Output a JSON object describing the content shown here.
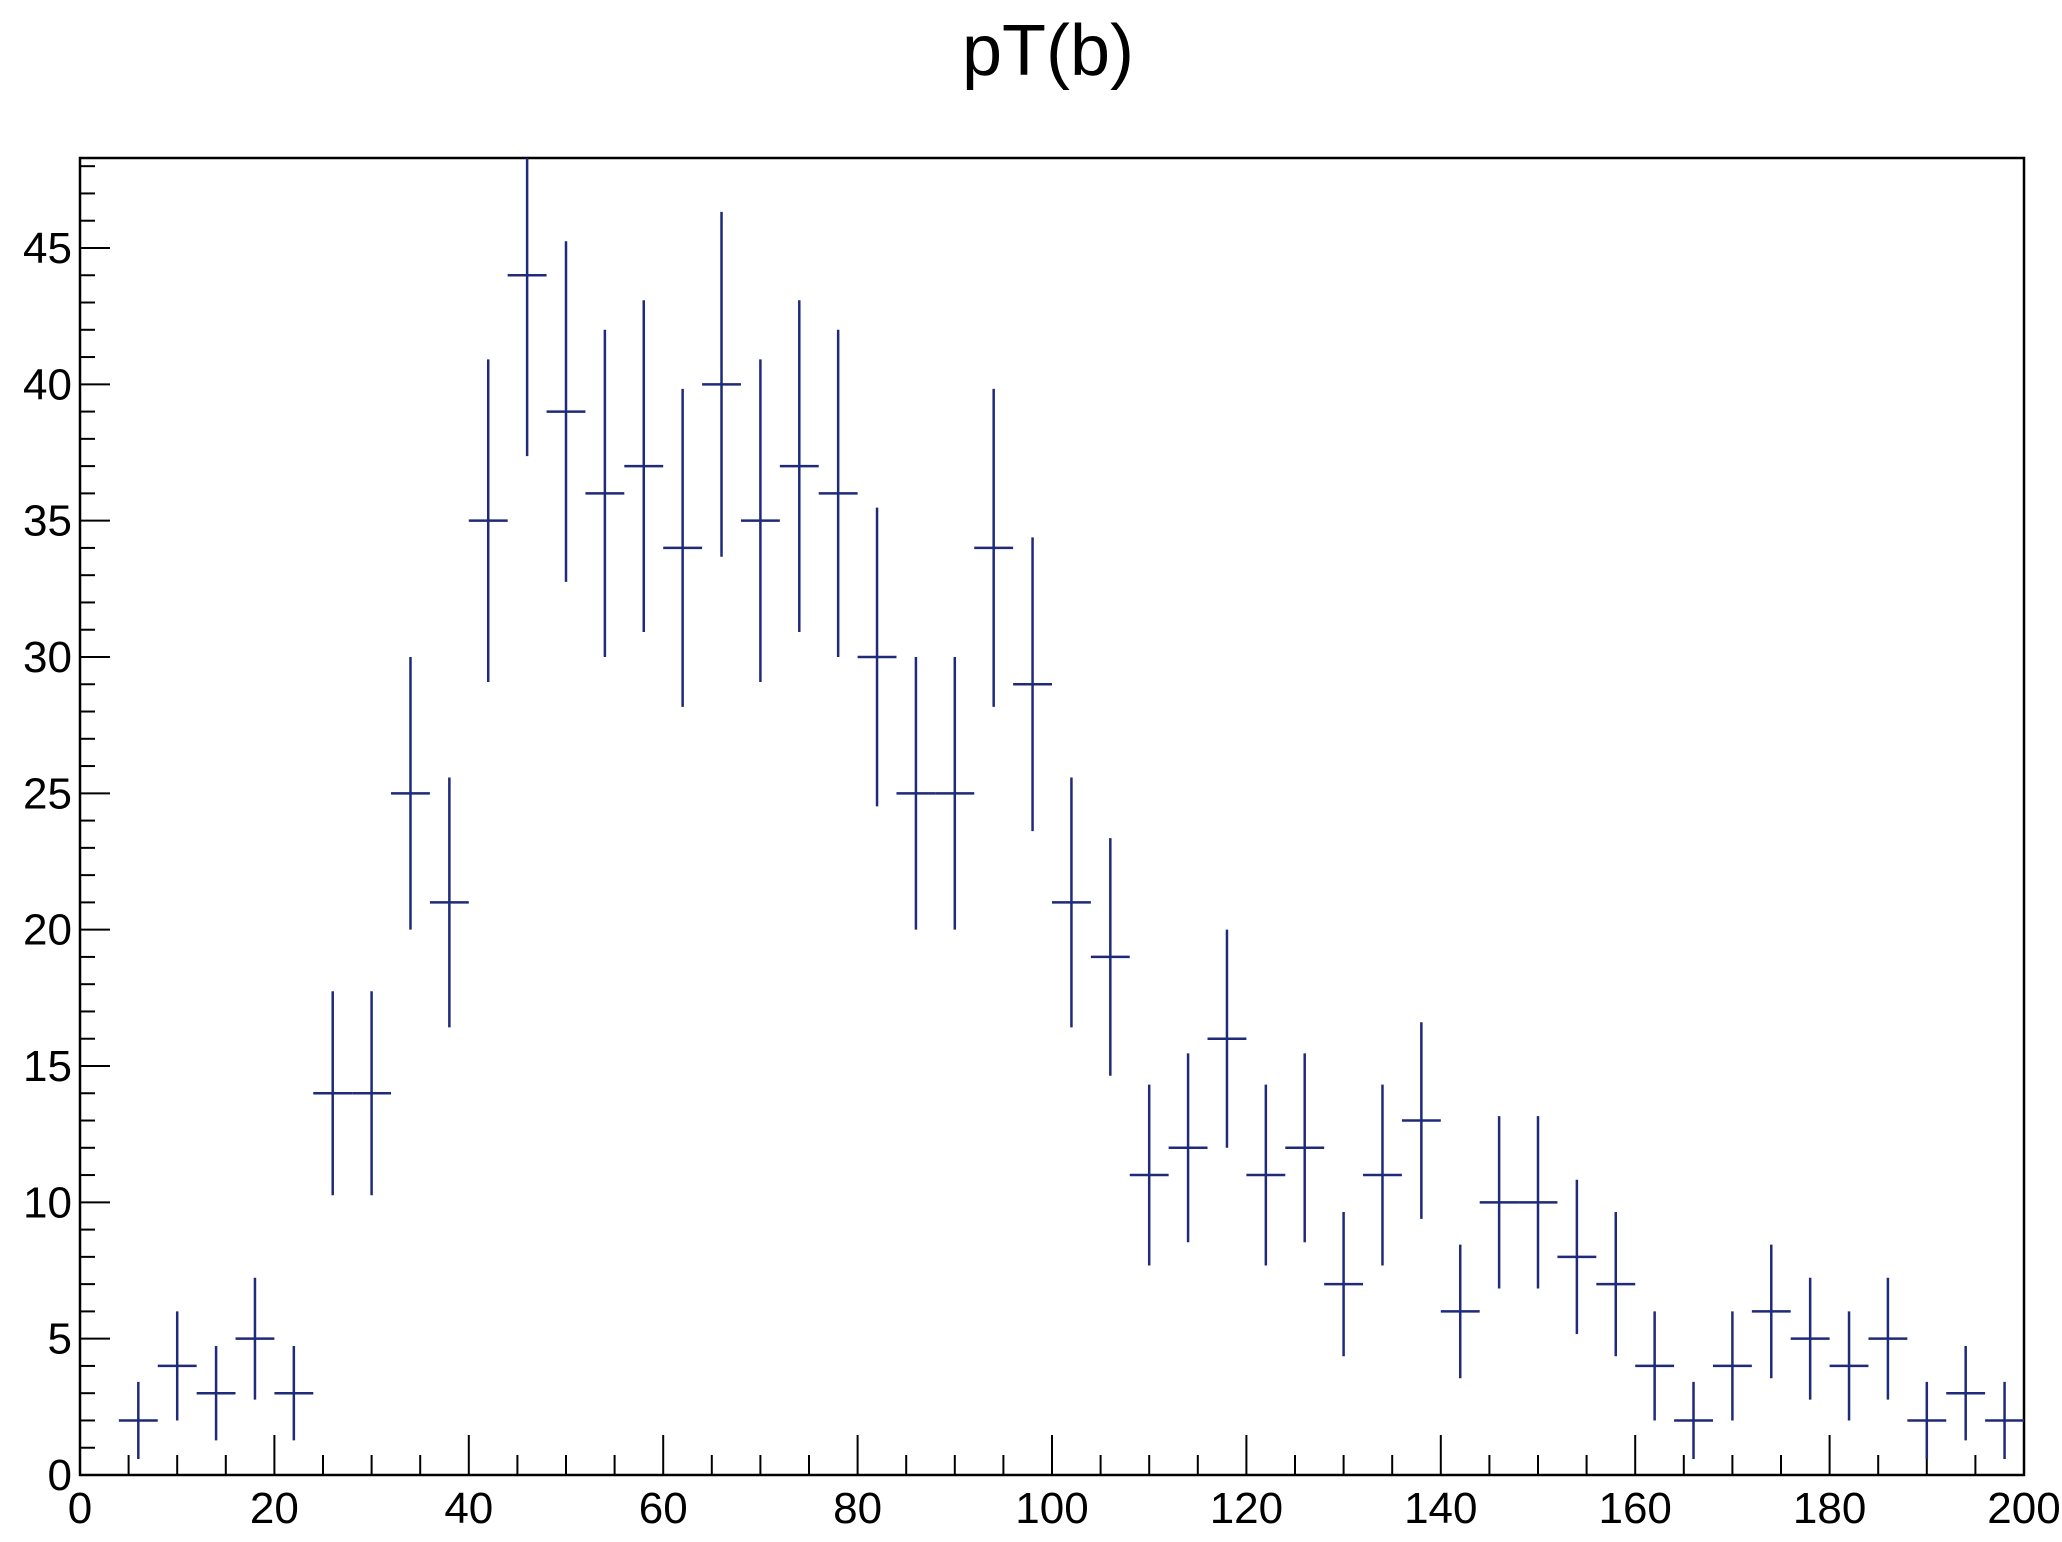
{
  "chart_data": {
    "type": "scatter",
    "title": "pT(b)",
    "xlabel": "",
    "ylabel": "",
    "xlim": [
      0,
      200
    ],
    "ylim": [
      0,
      48.3
    ],
    "grid": false,
    "legend": "none",
    "bin_width": 4,
    "x_ticks": [
      0,
      20,
      40,
      60,
      80,
      100,
      120,
      140,
      160,
      180,
      200
    ],
    "y_ticks": [
      0,
      5,
      10,
      15,
      20,
      25,
      30,
      35,
      40,
      45
    ],
    "marker_color": "#1f2a7a",
    "series": [
      {
        "x": [
          6,
          10,
          14,
          18,
          22,
          26,
          30,
          34,
          38,
          42,
          46,
          50,
          54,
          58,
          62,
          66,
          70,
          74,
          78,
          82,
          86,
          90,
          94,
          98,
          102,
          106,
          110,
          114,
          118,
          122,
          126,
          130,
          134,
          138,
          142,
          146,
          150,
          154,
          158,
          162,
          166,
          170,
          174,
          178,
          182,
          186,
          190,
          194,
          198
        ],
        "values": [
          2,
          4,
          3,
          5,
          3,
          14,
          14,
          25,
          21,
          35,
          44,
          39,
          36,
          37,
          34,
          40,
          35,
          37,
          36,
          30,
          25,
          25,
          34,
          29,
          21,
          19,
          11,
          12,
          16,
          11,
          12,
          7,
          11,
          13,
          6,
          10,
          10,
          8,
          7,
          4,
          2,
          4,
          6,
          5,
          4,
          5,
          2,
          3,
          2
        ]
      }
    ]
  }
}
